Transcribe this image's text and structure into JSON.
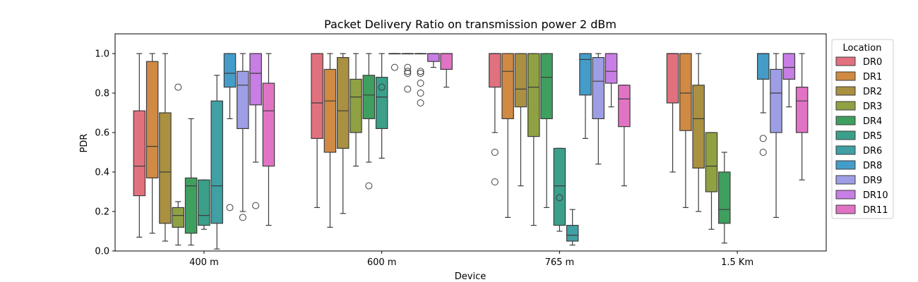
{
  "chart_data": {
    "type": "boxplot",
    "title": "Packet Delivery Ratio on transmission power 2 dBm",
    "xlabel": "Device",
    "ylabel": "PDR",
    "ylim": [
      0.0,
      1.1
    ],
    "yticks": [
      "0.0",
      "0.2",
      "0.4",
      "0.6",
      "0.8",
      "1.0"
    ],
    "categories": [
      "400 m",
      "600 m",
      "765 m",
      "1.5 Km"
    ],
    "legend_title": "Location",
    "legend_position": "right",
    "series": [
      {
        "name": "DR0",
        "color": "#e1717e",
        "boxes": [
          {
            "min": 0.07,
            "q1": 0.28,
            "median": 0.43,
            "q3": 0.71,
            "max": 1.0,
            "outliers": []
          },
          {
            "min": 0.22,
            "q1": 0.57,
            "median": 0.75,
            "q3": 1.0,
            "max": 1.0,
            "outliers": []
          },
          {
            "min": 0.6,
            "q1": 0.83,
            "median": 1.0,
            "q3": 1.0,
            "max": 1.0,
            "outliers": [
              0.5,
              0.35
            ]
          },
          {
            "min": 0.4,
            "q1": 0.75,
            "median": 1.0,
            "q3": 1.0,
            "max": 1.0,
            "outliers": []
          }
        ]
      },
      {
        "name": "DR1",
        "color": "#d08a43",
        "boxes": [
          {
            "min": 0.09,
            "q1": 0.37,
            "median": 0.53,
            "q3": 0.96,
            "max": 1.0,
            "outliers": []
          },
          {
            "min": 0.12,
            "q1": 0.5,
            "median": 0.76,
            "q3": 0.92,
            "max": 1.0,
            "outliers": []
          },
          {
            "min": 0.17,
            "q1": 0.67,
            "median": 0.91,
            "q3": 1.0,
            "max": 1.0,
            "outliers": []
          },
          {
            "min": 0.22,
            "q1": 0.61,
            "median": 0.8,
            "q3": 1.0,
            "max": 1.0,
            "outliers": []
          }
        ]
      },
      {
        "name": "DR2",
        "color": "#aa9041",
        "boxes": [
          {
            "min": 0.05,
            "q1": 0.14,
            "median": 0.4,
            "q3": 0.7,
            "max": 1.0,
            "outliers": []
          },
          {
            "min": 0.19,
            "q1": 0.52,
            "median": 0.71,
            "q3": 0.98,
            "max": 1.0,
            "outliers": []
          },
          {
            "min": 0.33,
            "q1": 0.73,
            "median": 0.82,
            "q3": 1.0,
            "max": 1.0,
            "outliers": []
          },
          {
            "min": 0.2,
            "q1": 0.42,
            "median": 0.67,
            "q3": 0.84,
            "max": 1.0,
            "outliers": []
          }
        ]
      },
      {
        "name": "DR3",
        "color": "#8fa143",
        "boxes": [
          {
            "min": 0.03,
            "q1": 0.12,
            "median": 0.18,
            "q3": 0.22,
            "max": 0.25,
            "outliers": [
              0.83
            ]
          },
          {
            "min": 0.43,
            "q1": 0.6,
            "median": 0.78,
            "q3": 0.87,
            "max": 1.0,
            "outliers": []
          },
          {
            "min": 0.13,
            "q1": 0.58,
            "median": 0.83,
            "q3": 1.0,
            "max": 1.0,
            "outliers": []
          },
          {
            "min": 0.11,
            "q1": 0.3,
            "median": 0.43,
            "q3": 0.6,
            "max": 0.6,
            "outliers": []
          }
        ]
      },
      {
        "name": "DR4",
        "color": "#3f9f5f",
        "boxes": [
          {
            "min": 0.03,
            "q1": 0.09,
            "median": 0.33,
            "q3": 0.37,
            "max": 0.67,
            "outliers": []
          },
          {
            "min": 0.45,
            "q1": 0.67,
            "median": 0.79,
            "q3": 0.89,
            "max": 1.0,
            "outliers": [
              0.33
            ]
          },
          {
            "min": 0.22,
            "q1": 0.67,
            "median": 0.88,
            "q3": 1.0,
            "max": 1.0,
            "outliers": []
          },
          {
            "min": 0.04,
            "q1": 0.14,
            "median": 0.21,
            "q3": 0.4,
            "max": 0.5,
            "outliers": []
          }
        ]
      },
      {
        "name": "DR5",
        "color": "#3b9f8a",
        "boxes": [
          {
            "min": 0.11,
            "q1": 0.13,
            "median": 0.18,
            "q3": 0.36,
            "max": 0.36,
            "outliers": []
          },
          {
            "min": 0.47,
            "q1": 0.62,
            "median": 0.78,
            "q3": 0.88,
            "max": 1.0,
            "outliers": [
              0.83
            ]
          },
          {
            "min": 0.1,
            "q1": 0.13,
            "median": 0.33,
            "q3": 0.52,
            "max": 0.52,
            "outliers": [
              0.27
            ]
          },
          null
        ]
      },
      {
        "name": "DR6",
        "color": "#40a0a4",
        "boxes": [
          {
            "min": 0.01,
            "q1": 0.14,
            "median": 0.33,
            "q3": 0.76,
            "max": 0.89,
            "outliers": []
          },
          {
            "min": 1.0,
            "q1": 1.0,
            "median": 1.0,
            "q3": 1.0,
            "max": 1.0,
            "outliers": [
              0.93
            ]
          },
          {
            "min": 0.03,
            "q1": 0.05,
            "median": 0.08,
            "q3": 0.13,
            "max": 0.21,
            "outliers": []
          },
          null
        ]
      },
      {
        "name": "DR8",
        "color": "#449cc9",
        "boxes": [
          {
            "min": 0.67,
            "q1": 0.83,
            "median": 0.9,
            "q3": 1.0,
            "max": 1.0,
            "outliers": [
              0.22
            ]
          },
          {
            "min": 1.0,
            "q1": 1.0,
            "median": 1.0,
            "q3": 1.0,
            "max": 1.0,
            "outliers": [
              0.93,
              0.91,
              0.9,
              0.82
            ]
          },
          {
            "min": 0.57,
            "q1": 0.79,
            "median": 0.97,
            "q3": 1.0,
            "max": 1.0,
            "outliers": []
          },
          {
            "min": 0.7,
            "q1": 0.87,
            "median": 1.0,
            "q3": 1.0,
            "max": 1.0,
            "outliers": [
              0.57,
              0.5
            ]
          }
        ]
      },
      {
        "name": "DR9",
        "color": "#9e9ee6",
        "boxes": [
          {
            "min": 0.2,
            "q1": 0.62,
            "median": 0.84,
            "q3": 0.91,
            "max": 1.0,
            "outliers": [
              0.17
            ]
          },
          {
            "min": 1.0,
            "q1": 1.0,
            "median": 1.0,
            "q3": 1.0,
            "max": 1.0,
            "outliers": [
              0.91,
              0.9,
              0.85,
              0.8,
              0.75
            ]
          },
          {
            "min": 0.44,
            "q1": 0.67,
            "median": 0.86,
            "q3": 0.98,
            "max": 1.0,
            "outliers": []
          },
          {
            "min": 0.17,
            "q1": 0.6,
            "median": 0.8,
            "q3": 0.92,
            "max": 1.0,
            "outliers": []
          }
        ]
      },
      {
        "name": "DR10",
        "color": "#c77ee5",
        "boxes": [
          {
            "min": 0.45,
            "q1": 0.74,
            "median": 0.9,
            "q3": 1.0,
            "max": 1.0,
            "outliers": [
              0.23
            ]
          },
          {
            "min": 0.93,
            "q1": 0.96,
            "median": 1.0,
            "q3": 1.0,
            "max": 1.0,
            "outliers": []
          },
          {
            "min": 0.73,
            "q1": 0.85,
            "median": 0.91,
            "q3": 1.0,
            "max": 1.0,
            "outliers": []
          },
          {
            "min": 0.73,
            "q1": 0.87,
            "median": 0.93,
            "q3": 1.0,
            "max": 1.0,
            "outliers": []
          }
        ]
      },
      {
        "name": "DR11",
        "color": "#e173c4",
        "boxes": [
          {
            "min": 0.13,
            "q1": 0.43,
            "median": 0.71,
            "q3": 0.85,
            "max": 1.0,
            "outliers": []
          },
          {
            "min": 0.83,
            "q1": 0.92,
            "median": 1.0,
            "q3": 1.0,
            "max": 1.0,
            "outliers": []
          },
          {
            "min": 0.33,
            "q1": 0.63,
            "median": 0.77,
            "q3": 0.84,
            "max": 0.84,
            "outliers": []
          },
          {
            "min": 0.36,
            "q1": 0.6,
            "median": 0.76,
            "q3": 0.83,
            "max": 1.0,
            "outliers": []
          }
        ]
      }
    ]
  }
}
